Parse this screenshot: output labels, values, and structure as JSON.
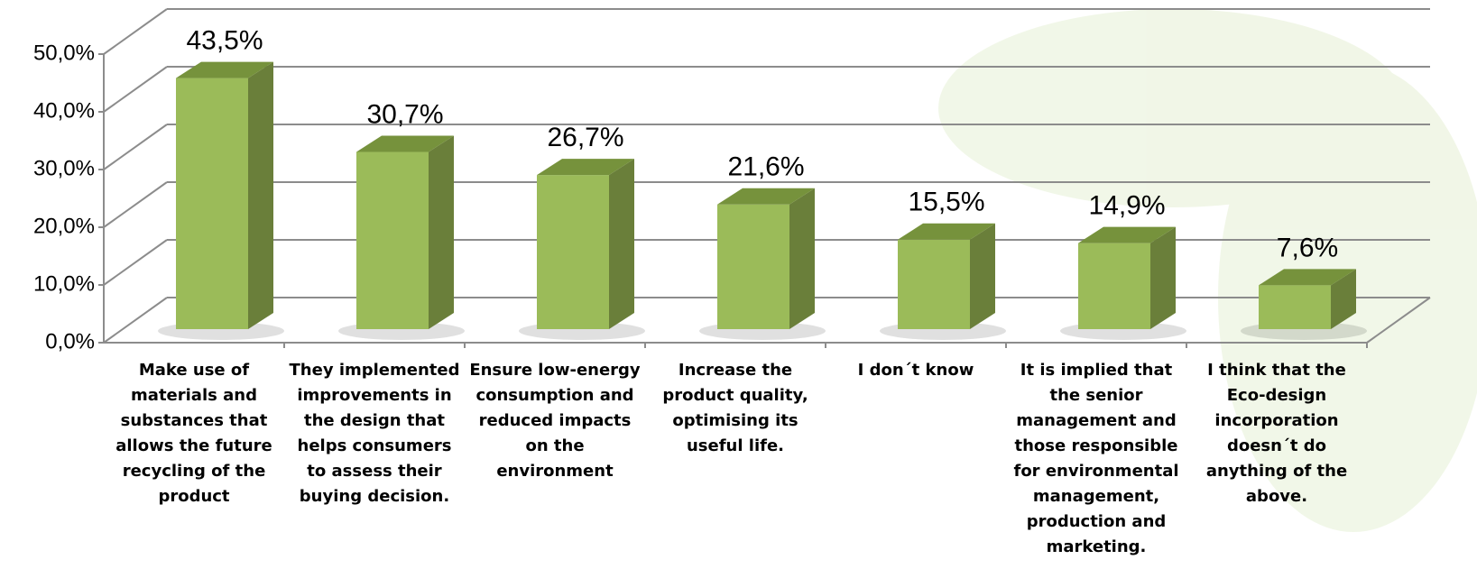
{
  "chart_data": {
    "type": "bar3d",
    "categories": [
      "Make use of materials and substances that allows the future recycling of the product",
      "They implemented improvements in the design that helps consumers to assess their buying decision.",
      "Ensure low-energy consumption and reduced impacts on the environment",
      "Increase the product quality, optimising its useful life.",
      "I don´t know",
      "It is implied that the senior management and those responsible for environmental management, production and marketing.",
      "I think that the Eco-design incorporation doesn´t do anything of the above."
    ],
    "values": [
      43.5,
      30.7,
      26.7,
      21.6,
      15.5,
      14.9,
      7.6
    ],
    "value_labels": [
      "43,5%",
      "30,7%",
      "26,7%",
      "21,6%",
      "15,5%",
      "14,9%",
      "7,6%"
    ],
    "color": "#9bbb59",
    "ylim": [
      0,
      50
    ],
    "yticks": [
      {
        "value": 0,
        "label": "0,0%"
      },
      {
        "value": 10,
        "label": "10,0%"
      },
      {
        "value": 20,
        "label": "20,0%"
      },
      {
        "value": 30,
        "label": "30,0%"
      },
      {
        "value": 40,
        "label": "40,0%"
      },
      {
        "value": 50,
        "label": "50,0%"
      }
    ],
    "grid": true
  }
}
